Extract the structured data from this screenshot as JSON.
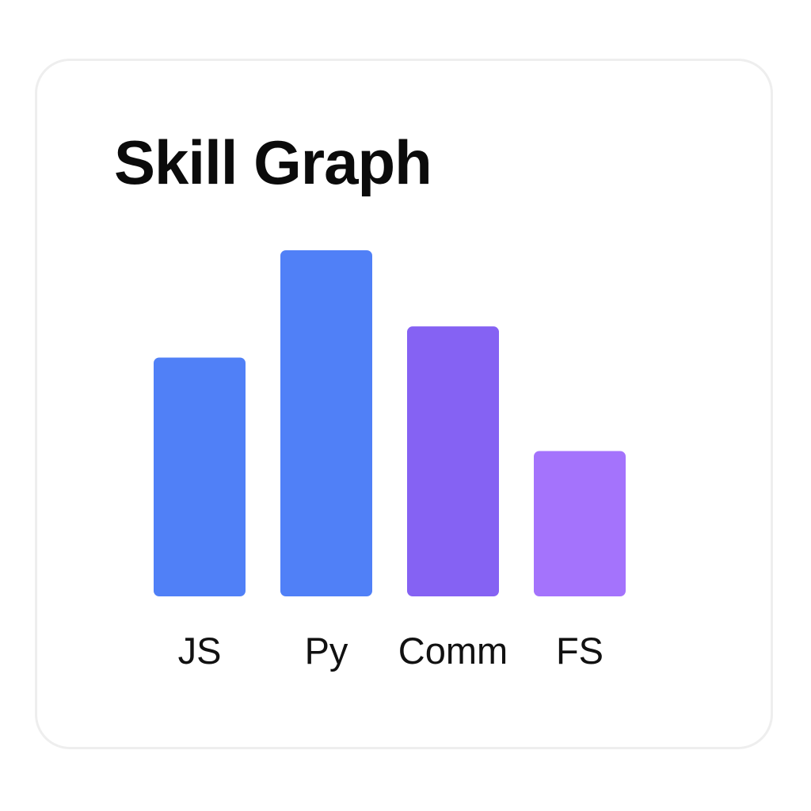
{
  "title": "Skill Graph",
  "chart_data": {
    "type": "bar",
    "title": "Skill Graph",
    "categories": [
      "JS",
      "Py",
      "Comm",
      "FS"
    ],
    "values": [
      69,
      100,
      78,
      42
    ],
    "ylim": [
      0,
      100
    ],
    "grid": false,
    "legend": "none",
    "colors": [
      "#5080f7",
      "#5080f7",
      "#8562f3",
      "#a473fc"
    ]
  }
}
